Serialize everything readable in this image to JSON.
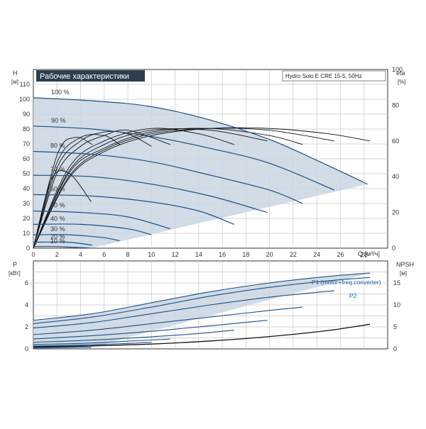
{
  "chart_data": [
    {
      "type": "line",
      "title": "Рабочие характеристики",
      "info": "Hydro Solo E CRE 15-5, 50Hz",
      "ylabel": "H",
      "yunit": "[м]",
      "y2label": "eta",
      "y2unit": "[%]",
      "xunit": "Q [м³/ч]",
      "xlim": [
        0,
        30
      ],
      "ylim": [
        0,
        120
      ],
      "y2lim": [
        0,
        100
      ],
      "x_ticks": [
        "0",
        "2",
        "4",
        "6",
        "8",
        "10",
        "12",
        "14",
        "16",
        "18",
        "20",
        "22",
        "24",
        "26",
        "28"
      ],
      "y_ticks": [
        "0",
        "10",
        "20",
        "30",
        "40",
        "50",
        "60",
        "70",
        "80",
        "90",
        "100",
        "110"
      ],
      "y2_ticks": [
        "0",
        "20",
        "40",
        "60",
        "80",
        "100"
      ],
      "grid": true,
      "series": [
        {
          "name": "100 %",
          "x": [
            0,
            5,
            10,
            15,
            20,
            24,
            28.3
          ],
          "y": [
            101,
            99,
            95,
            86,
            73,
            59,
            43
          ]
        },
        {
          "name": "90 %",
          "x": [
            0,
            5,
            10,
            15,
            20,
            25.5
          ],
          "y": [
            82,
            80,
            75,
            67,
            57,
            39
          ]
        },
        {
          "name": "80 %",
          "x": [
            0,
            5,
            10,
            15,
            20,
            22.8
          ],
          "y": [
            65,
            63,
            58,
            49,
            39,
            30
          ]
        },
        {
          "name": "70 %",
          "x": [
            0,
            5,
            10,
            15,
            19.8
          ],
          "y": [
            49,
            48,
            43,
            35,
            24
          ]
        },
        {
          "name": "60 %",
          "x": [
            0,
            5,
            10,
            14,
            17
          ],
          "y": [
            36,
            35,
            31,
            25,
            16
          ]
        },
        {
          "name": "50 %",
          "x": [
            0,
            4,
            8,
            11.6
          ],
          "y": [
            25,
            24,
            21,
            13
          ]
        },
        {
          "name": "40 %",
          "x": [
            0,
            4,
            8,
            10
          ],
          "y": [
            16,
            16,
            13,
            9
          ]
        },
        {
          "name": "30 %",
          "x": [
            0,
            3,
            6,
            7.3
          ],
          "y": [
            9,
            9,
            7,
            5
          ]
        },
        {
          "name": "20 %",
          "x": [
            0,
            3,
            5
          ],
          "y": [
            4,
            4,
            2
          ]
        },
        {
          "name": "10 %",
          "x": [
            0,
            2,
            4.9
          ],
          "y": [
            1,
            1,
            0
          ]
        }
      ],
      "efficiency_series": [
        {
          "x": [
            0,
            3,
            6,
            10,
            15,
            20,
            25,
            28.5
          ],
          "y": [
            0,
            39,
            54,
            63,
            67,
            67,
            64,
            60
          ]
        },
        {
          "x": [
            0,
            3,
            6,
            10,
            15,
            20,
            25.5
          ],
          "y": [
            0,
            40,
            55,
            64,
            67,
            66,
            60
          ]
        },
        {
          "x": [
            0,
            3,
            6,
            10,
            15,
            20,
            22.8
          ],
          "y": [
            0,
            42,
            56,
            65,
            67,
            63,
            58
          ]
        },
        {
          "x": [
            0,
            3,
            6,
            10,
            15,
            19.8
          ],
          "y": [
            0,
            43,
            58,
            66,
            66,
            60
          ]
        },
        {
          "x": [
            0,
            3,
            6,
            10,
            14,
            17
          ],
          "y": [
            0,
            45,
            60,
            67,
            64,
            58
          ]
        },
        {
          "x": [
            0,
            2,
            4,
            6,
            8,
            11.6
          ],
          "y": [
            0,
            42,
            57,
            63,
            66,
            58
          ]
        },
        {
          "x": [
            0,
            2,
            4,
            6,
            8,
            10
          ],
          "y": [
            0,
            45,
            60,
            65,
            64,
            57
          ]
        },
        {
          "x": [
            0,
            2,
            4,
            6,
            7.3
          ],
          "y": [
            0,
            48,
            62,
            63,
            58
          ]
        },
        {
          "x": [
            0,
            2,
            3.5,
            5
          ],
          "y": [
            0,
            52,
            62,
            58
          ]
        },
        {
          "x": [
            0,
            1.5,
            3,
            4.9
          ],
          "y": [
            0,
            38,
            42,
            26
          ]
        }
      ]
    },
    {
      "type": "line",
      "ylabel": "P",
      "yunit": "[кВт]",
      "y2label": "NPSH",
      "y2unit": "[м]",
      "xlim": [
        0,
        30
      ],
      "ylim": [
        0,
        8
      ],
      "y2lim": [
        0,
        20
      ],
      "y_ticks": [
        "0",
        "2",
        "4",
        "6"
      ],
      "y2_ticks": [
        "0",
        "5",
        "10",
        "15"
      ],
      "grid": true,
      "labels": {
        "p1": "P1 (motor+freq.converter)",
        "p2": "P2"
      },
      "series": [
        {
          "name": "P1 (motor+freq.converter)",
          "x": [
            0,
            5,
            10,
            15,
            20,
            25,
            28.5
          ],
          "y": [
            2.6,
            3.2,
            4.2,
            5.2,
            6.0,
            6.6,
            6.9
          ]
        },
        {
          "name": "P2",
          "x": [
            0,
            5,
            10,
            15,
            20,
            25,
            28.5
          ],
          "y": [
            2.3,
            2.9,
            3.8,
            4.8,
            5.6,
            6.2,
            6.5
          ]
        },
        {
          "x": [
            0,
            5,
            10,
            15,
            20,
            25.5
          ],
          "y": [
            1.9,
            2.4,
            3.2,
            4.0,
            4.7,
            5.3
          ]
        },
        {
          "x": [
            0,
            5,
            10,
            15,
            20,
            22.8
          ],
          "y": [
            1.3,
            1.7,
            2.3,
            2.9,
            3.5,
            3.8
          ]
        },
        {
          "x": [
            0,
            5,
            10,
            15,
            19.8
          ],
          "y": [
            0.9,
            1.2,
            1.6,
            2.1,
            2.6
          ]
        },
        {
          "x": [
            0,
            5,
            10,
            14,
            17
          ],
          "y": [
            0.6,
            0.8,
            1.1,
            1.4,
            1.7
          ]
        },
        {
          "x": [
            0,
            4,
            8,
            11.6
          ],
          "y": [
            0.4,
            0.5,
            0.7,
            0.9
          ]
        },
        {
          "x": [
            0,
            4,
            8,
            10
          ],
          "y": [
            0.25,
            0.35,
            0.5,
            0.6
          ]
        },
        {
          "x": [
            0,
            3,
            6,
            7.3
          ],
          "y": [
            0.15,
            0.2,
            0.3,
            0.35
          ]
        },
        {
          "x": [
            0,
            2,
            4.9
          ],
          "y": [
            0.08,
            0.1,
            0.15
          ]
        }
      ],
      "npsh_series": [
        {
          "x": [
            0,
            5,
            10,
            15,
            20,
            25,
            28.5
          ],
          "y": [
            0.5,
            0.7,
            1.1,
            1.8,
            2.8,
            4.2,
            5.6
          ]
        }
      ]
    }
  ]
}
